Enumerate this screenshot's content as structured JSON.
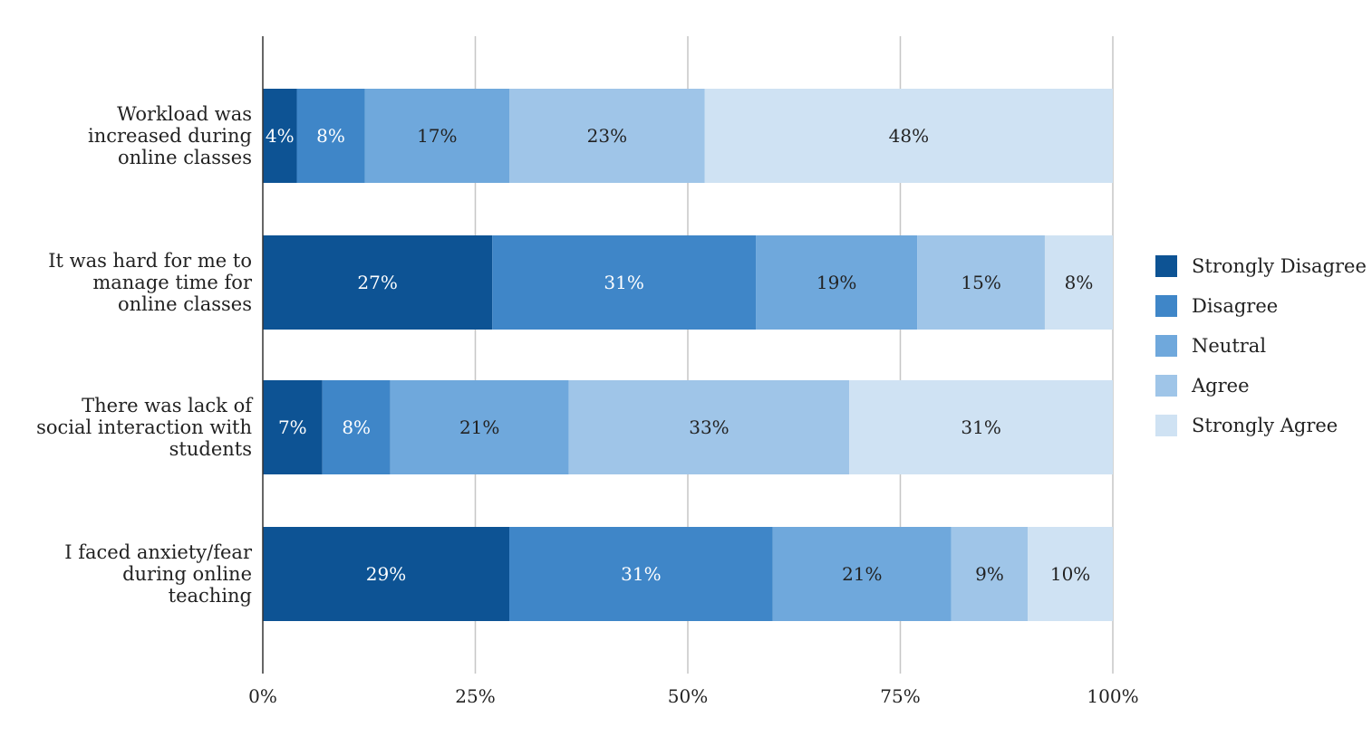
{
  "chart_data": {
    "type": "bar",
    "orientation": "horizontal",
    "stacked": true,
    "percent_stacked": true,
    "categories": [
      [
        "Workload was",
        "increased during",
        "online classes"
      ],
      [
        "It was hard for me to",
        "manage time for",
        "online classes"
      ],
      [
        "There was lack of",
        "social interaction with",
        "students"
      ],
      [
        "I faced anxiety/fear",
        "during online",
        "teaching"
      ]
    ],
    "series": [
      {
        "name": "Strongly Disagree",
        "color": "#0d5394",
        "text_color": "#ffffff",
        "values": [
          4,
          27,
          7,
          29
        ]
      },
      {
        "name": "Disagree",
        "color": "#3f86c8",
        "text_color": "#ffffff",
        "values": [
          8,
          31,
          8,
          31
        ]
      },
      {
        "name": "Neutral",
        "color": "#6fa8dc",
        "text_color": "#222222",
        "values": [
          17,
          19,
          21,
          21
        ]
      },
      {
        "name": "Agree",
        "color": "#9fc5e8",
        "text_color": "#222222",
        "values": [
          23,
          15,
          33,
          9
        ]
      },
      {
        "name": "Strongly Agree",
        "color": "#cfe2f3",
        "text_color": "#222222",
        "values": [
          48,
          8,
          31,
          10
        ]
      }
    ],
    "data_labels": [
      [
        "4%",
        "27%",
        "7%",
        "29%"
      ],
      [
        "8%",
        "31%",
        "8%",
        "31%"
      ],
      [
        "17%",
        "19%",
        "21%",
        "21%"
      ],
      [
        "23%",
        "15%",
        "33%",
        "9%"
      ],
      [
        "48%",
        "8%",
        "31%",
        "10%"
      ]
    ],
    "x_ticks": [
      0,
      25,
      50,
      75,
      100
    ],
    "x_tick_labels": [
      "0%",
      "25%",
      "50%",
      "75%",
      "100%"
    ],
    "xlim": [
      0,
      100
    ],
    "title": "",
    "xlabel": "",
    "ylabel": "",
    "grid": "vertical",
    "legend_position": "right"
  }
}
